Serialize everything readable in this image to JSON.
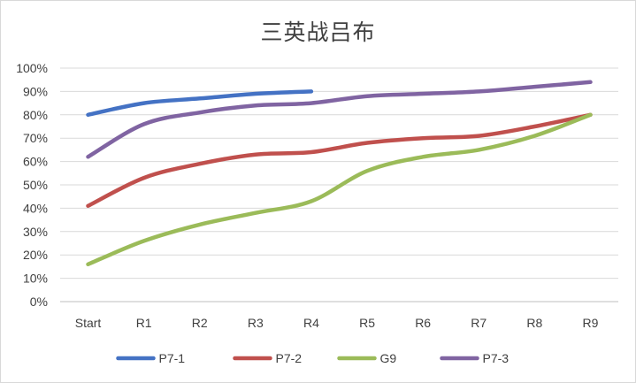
{
  "chart_data": {
    "type": "line",
    "title": "三英战吕布",
    "xlabel": "",
    "ylabel": "",
    "categories": [
      "Start",
      "R1",
      "R2",
      "R3",
      "R4",
      "R5",
      "R6",
      "R7",
      "R8",
      "R9"
    ],
    "ylim": [
      0,
      100
    ],
    "y_ticks": [
      "0%",
      "10%",
      "20%",
      "30%",
      "40%",
      "50%",
      "60%",
      "70%",
      "80%",
      "90%",
      "100%"
    ],
    "grid": true,
    "legend_position": "bottom",
    "series": [
      {
        "name": "P7-1",
        "color": "#4472c4",
        "values": [
          80,
          85,
          87,
          89,
          90,
          null,
          null,
          null,
          null,
          null
        ]
      },
      {
        "name": "P7-2",
        "color": "#c0504d",
        "values": [
          41,
          53,
          59,
          63,
          64,
          68,
          70,
          71,
          75,
          80
        ]
      },
      {
        "name": "G9",
        "color": "#9bbb59",
        "values": [
          16,
          26,
          33,
          38,
          43,
          56,
          62,
          65,
          71,
          80
        ]
      },
      {
        "name": "P7-3",
        "color": "#8064a2",
        "values": [
          62,
          76,
          81,
          84,
          85,
          88,
          89,
          90,
          92,
          94
        ]
      }
    ]
  }
}
